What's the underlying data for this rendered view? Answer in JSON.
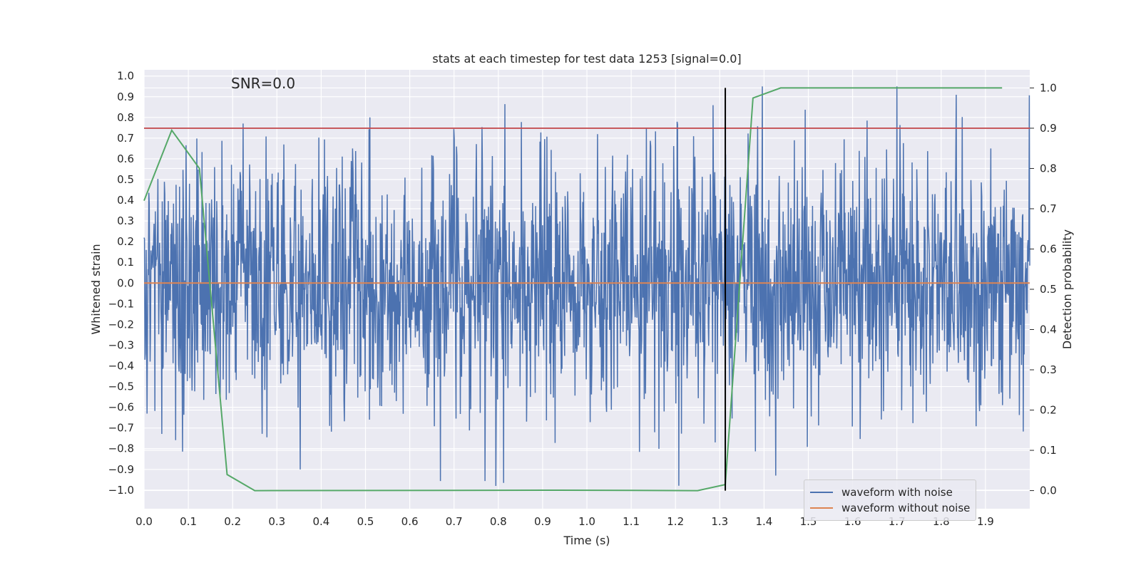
{
  "chart_data": {
    "type": "line",
    "title": "stats at each timestep for test data 1253 [signal=0.0]",
    "annotation": "SNR=0.0",
    "xlabel": "Time (s)",
    "ylabel": "Whitened strain",
    "y2label": "Detection probability",
    "xlim": [
      0.0,
      2.0
    ],
    "ylim": [
      -1.09,
      1.03
    ],
    "y2lim": [
      -0.045,
      1.045
    ],
    "x_ticks": [
      0.0,
      0.1,
      0.2,
      0.3,
      0.4,
      0.5,
      0.6,
      0.7,
      0.8,
      0.9,
      1.0,
      1.1,
      1.2,
      1.3,
      1.4,
      1.5,
      1.6,
      1.7,
      1.8,
      1.9
    ],
    "x_tick_labels": [
      "0.0",
      "0.1",
      "0.2",
      "0.3",
      "0.4",
      "0.5",
      "0.6",
      "0.7",
      "0.8",
      "0.9",
      "1.0",
      "1.1",
      "1.2",
      "1.3",
      "1.4",
      "1.5",
      "1.6",
      "1.7",
      "1.8",
      "1.9"
    ],
    "y_ticks": [
      1.0,
      0.9,
      0.8,
      0.7,
      0.6,
      0.5,
      0.4,
      0.3,
      0.2,
      0.1,
      0.0,
      -0.1,
      -0.2,
      -0.3,
      -0.4,
      -0.5,
      -0.6,
      -0.7,
      -0.8,
      -0.9,
      -1.0
    ],
    "y_tick_labels": [
      "1.0",
      "0.9",
      "0.8",
      "0.7",
      "0.6",
      "0.5",
      "0.4",
      "0.3",
      "0.2",
      "0.1",
      "0.0",
      "−0.1",
      "−0.2",
      "−0.3",
      "−0.4",
      "−0.5",
      "−0.6",
      "−0.7",
      "−0.8",
      "−0.9",
      "−1.0"
    ],
    "y2_ticks": [
      1.0,
      0.9,
      0.8,
      0.7,
      0.6,
      0.5,
      0.4,
      0.3,
      0.2,
      0.1,
      0.0
    ],
    "y2_tick_labels": [
      "1.0",
      "0.9",
      "0.8",
      "0.7",
      "0.6",
      "0.5",
      "0.4",
      "0.3",
      "0.2",
      "0.1",
      "0.0"
    ],
    "grid": true,
    "legend_position": "lower-right",
    "series": [
      {
        "name": "waveform with noise",
        "axis": "left",
        "color": "#4c72b0",
        "description_kind": "noise",
        "samples": 2048,
        "amplitude_std": 0.3,
        "random_seed": 1253
      },
      {
        "name": "waveform without noise",
        "axis": "left",
        "color": "#dd8452",
        "x": [
          0.0,
          2.0
        ],
        "y": [
          0.0,
          0.0
        ]
      },
      {
        "axis": "right",
        "color": "#55a868",
        "x": [
          0.0,
          0.0625,
          0.125,
          0.1875,
          0.25,
          0.9375,
          1.25,
          1.3125,
          1.375,
          1.4375,
          1.9375
        ],
        "y": [
          0.72,
          0.895,
          0.8,
          0.04,
          0.0,
          0.001,
          0.0,
          0.015,
          0.975,
          1.0,
          1.0
        ]
      },
      {
        "axis": "right",
        "color": "#c44e52",
        "kind": "hline",
        "y": 0.9
      },
      {
        "axis": "right",
        "color": "#000000",
        "kind": "vline",
        "x": 1.3125,
        "y_range": [
          0.0,
          1.0
        ]
      }
    ]
  }
}
